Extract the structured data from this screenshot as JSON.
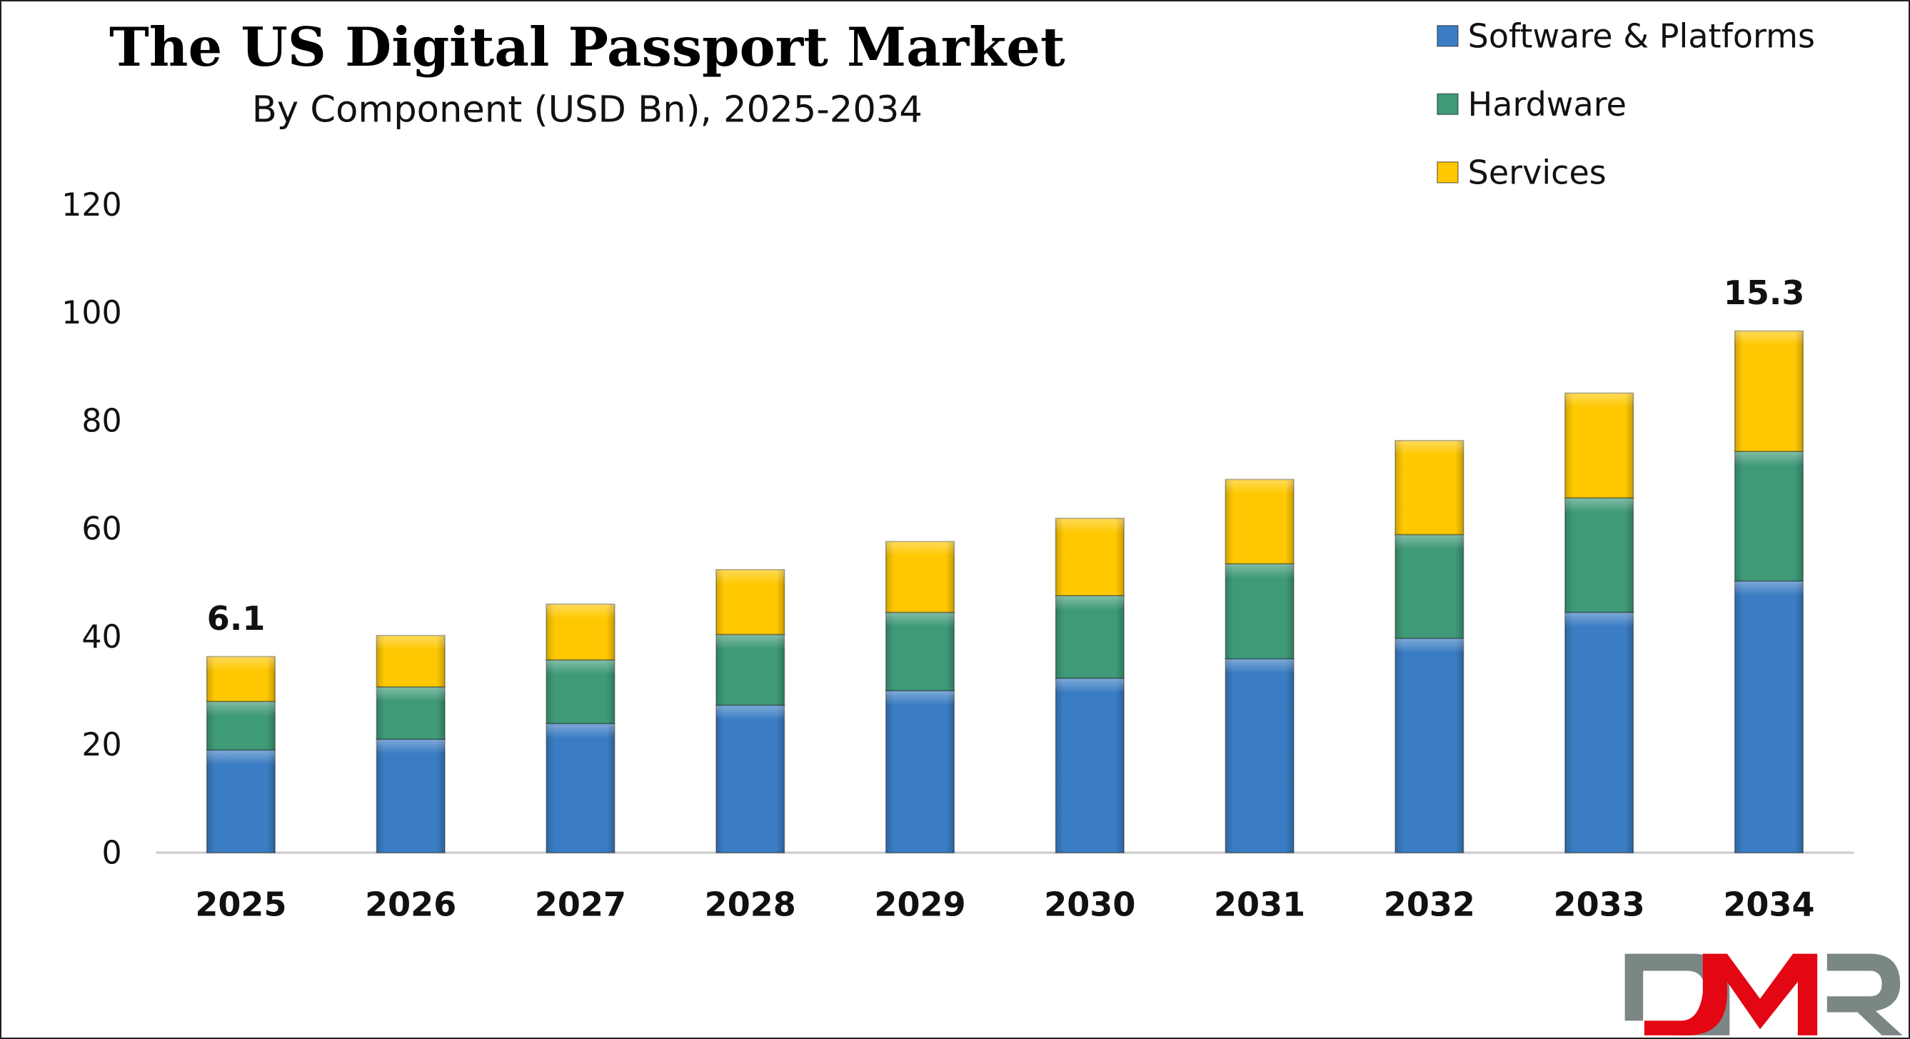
{
  "chart_data": {
    "type": "bar",
    "stacked": true,
    "title": "The US Digital Passport Market",
    "subtitle": "By Component (USD Bn), 2025-2034",
    "xlabel": "",
    "ylabel": "",
    "ylim": [
      0,
      120
    ],
    "yticks": [
      0,
      20,
      40,
      60,
      80,
      100,
      120
    ],
    "grid": false,
    "legend_position": "top-right",
    "categories": [
      "2025",
      "2026",
      "2027",
      "2028",
      "2029",
      "2030",
      "2031",
      "2032",
      "2033",
      "2034"
    ],
    "series": [
      {
        "name": "Software & Platforms",
        "color": "#3a7dc4",
        "values": [
          19.0,
          21.0,
          23.9,
          27.3,
          30.0,
          32.3,
          35.9,
          39.7,
          44.5,
          50.3
        ]
      },
      {
        "name": "Hardware",
        "color": "#3f9a78",
        "values": [
          9.0,
          9.7,
          11.8,
          13.1,
          14.5,
          15.3,
          17.6,
          19.2,
          21.2,
          24.0
        ]
      },
      {
        "name": "Services",
        "color": "#ffc800",
        "values": [
          8.3,
          9.5,
          10.3,
          12.0,
          13.1,
          14.3,
          15.6,
          17.4,
          19.4,
          22.3
        ]
      }
    ],
    "annotations": [
      {
        "category": "2025",
        "text": "6.1"
      },
      {
        "category": "2034",
        "text": "15.3"
      }
    ]
  },
  "logo": {
    "text": "DMR",
    "colors": {
      "gray": "#7b8784",
      "red": "#e30613"
    }
  }
}
